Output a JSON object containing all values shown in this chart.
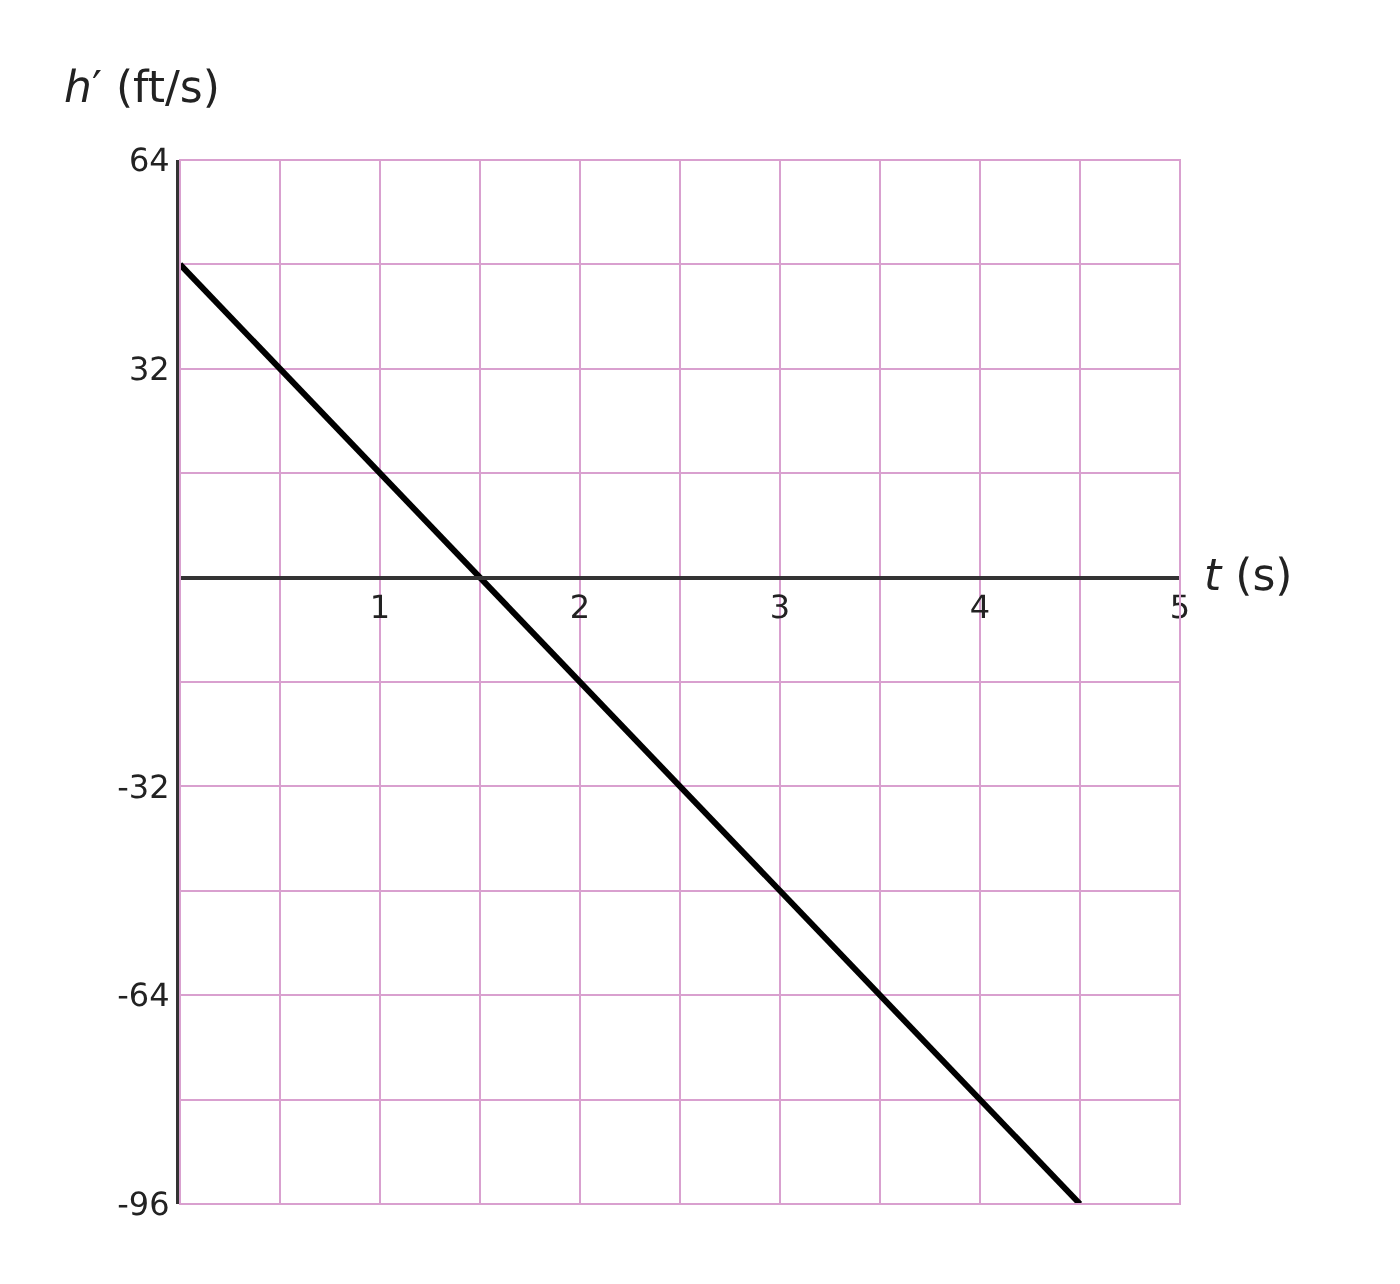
{
  "chart_data": {
    "type": "line",
    "xlabel": "t (s)",
    "ylabel": "h′ (ft/s)",
    "x": [
      0,
      4.5
    ],
    "series": [
      {
        "color": "#000000",
        "values": [
          48,
          -96
        ]
      }
    ],
    "xlim": [
      0,
      5
    ],
    "ylim": [
      -96,
      64
    ],
    "xticks": [
      {
        "value": 0.5,
        "label": null
      },
      1,
      {
        "value": 1.5,
        "label": null
      },
      2,
      {
        "value": 2.5,
        "label": null
      },
      3,
      {
        "value": 3.5,
        "label": null
      },
      4,
      {
        "value": 4.5,
        "label": null
      },
      5
    ],
    "yticks": [
      -96,
      {
        "value": -80,
        "label": null
      },
      -64,
      {
        "value": -48,
        "label": null
      },
      -32,
      {
        "value": -16,
        "label": null
      },
      {
        "value": 0,
        "label": null
      },
      {
        "value": 16,
        "label": null
      },
      32,
      {
        "value": 48,
        "label": null
      },
      64
    ],
    "grid": true,
    "marker": "none",
    "line_style": "solid",
    "legend": false
  }
}
